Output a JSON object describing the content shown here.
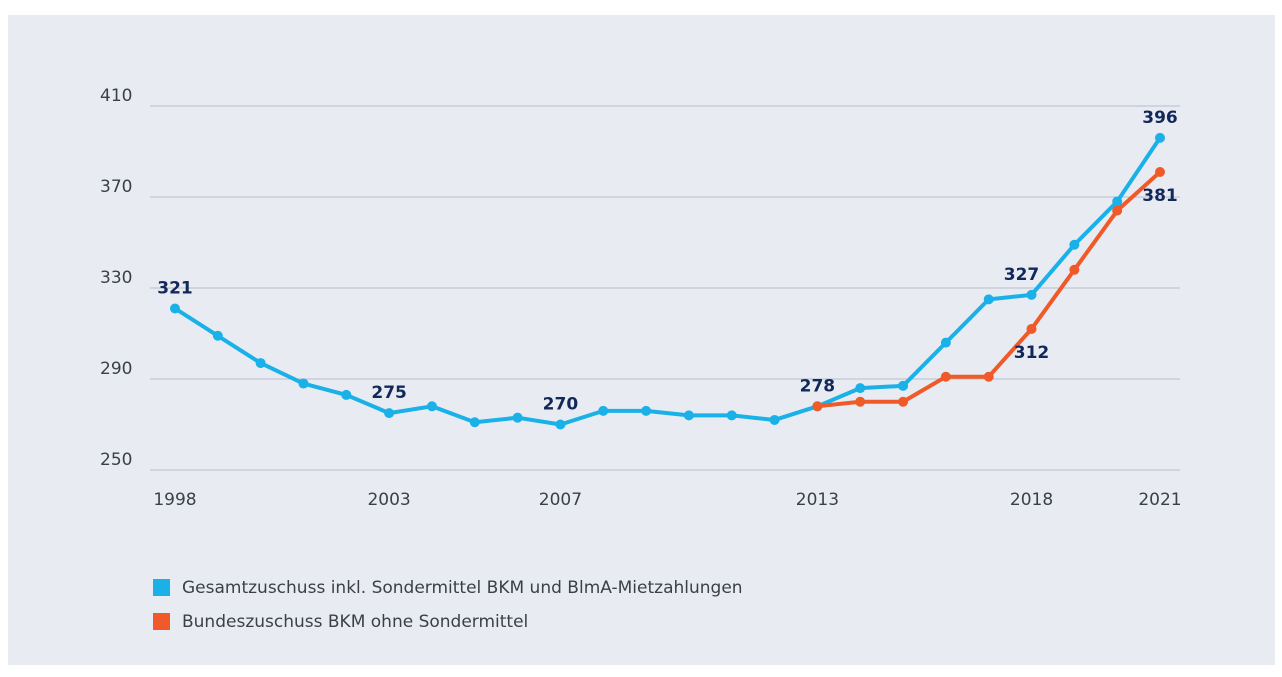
{
  "chart_data": {
    "type": "line",
    "x": [
      1998,
      1999,
      2000,
      2001,
      2002,
      2003,
      2004,
      2005,
      2006,
      2007,
      2008,
      2009,
      2010,
      2011,
      2012,
      2013,
      2014,
      2015,
      2016,
      2017,
      2018,
      2019,
      2020,
      2021
    ],
    "series": [
      {
        "name": "Gesamtzuschuss inkl. Sondermittel BKM und BlmA-Mietzahlungen",
        "color": "#1ab0e8",
        "values": [
          321,
          309,
          297,
          288,
          283,
          275,
          278,
          271,
          273,
          270,
          276,
          276,
          274,
          274,
          272,
          278,
          286,
          287,
          306,
          325,
          327,
          349,
          368,
          396
        ],
        "value_labels": [
          "321",
          null,
          null,
          null,
          null,
          "275",
          null,
          null,
          null,
          "270",
          null,
          null,
          null,
          null,
          null,
          "278",
          null,
          null,
          null,
          null,
          "327",
          null,
          null,
          "396"
        ]
      },
      {
        "name": "Bundeszuschuss BKM ohne Sondermittel",
        "color": "#f05a28",
        "values": [
          null,
          null,
          null,
          null,
          null,
          null,
          null,
          null,
          null,
          null,
          null,
          null,
          null,
          null,
          null,
          278,
          280,
          280,
          291,
          291,
          312,
          338,
          364,
          381
        ],
        "value_labels": [
          null,
          null,
          null,
          null,
          null,
          null,
          null,
          null,
          null,
          null,
          null,
          null,
          null,
          null,
          null,
          null,
          null,
          null,
          null,
          null,
          "312",
          null,
          null,
          "381"
        ]
      }
    ],
    "xlim": [
      1998,
      2021
    ],
    "xticks": [
      1998,
      2003,
      2007,
      2013,
      2018,
      2021
    ],
    "ylim": [
      250,
      410
    ],
    "yticks": [
      250,
      290,
      330,
      370,
      410
    ],
    "grid": true
  }
}
